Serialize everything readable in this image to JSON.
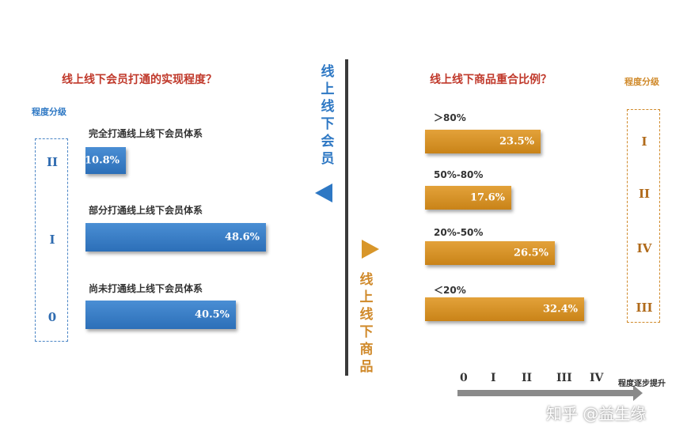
{
  "chart_data": [
    {
      "type": "bar",
      "title": "线上线下会员打通的实现程度？",
      "side_label": "线上线下会员",
      "level_header": "程度分级",
      "categories": [
        "完全打通线上线下会员体系",
        "部分打通线上线下会员体系",
        "尚未打通线上线下会员体系"
      ],
      "levels": [
        "II",
        "I",
        "0"
      ],
      "values": [
        10.8,
        48.6,
        40.5
      ],
      "value_labels": [
        "10.8%",
        "48.6%",
        "40.5%"
      ],
      "color": "#2e78c4"
    },
    {
      "type": "bar",
      "title": "线上线下商品重合比例？",
      "side_label": "线上线下商品",
      "level_header": "程度分级",
      "categories": [
        "＞80%",
        "50%-80%",
        "20%-50%",
        "＜20%"
      ],
      "levels": [
        "I",
        "II",
        "IV",
        "III"
      ],
      "values": [
        23.5,
        17.6,
        26.5,
        32.4
      ],
      "value_labels": [
        "23.5%",
        "17.6%",
        "26.5%",
        "32.4%"
      ],
      "color": "#d8962a"
    }
  ],
  "axis": {
    "ticks": [
      "0",
      "I",
      "II",
      "III",
      "IV"
    ],
    "label": "程度逐步提升"
  },
  "watermark": "知乎 @益生缘"
}
